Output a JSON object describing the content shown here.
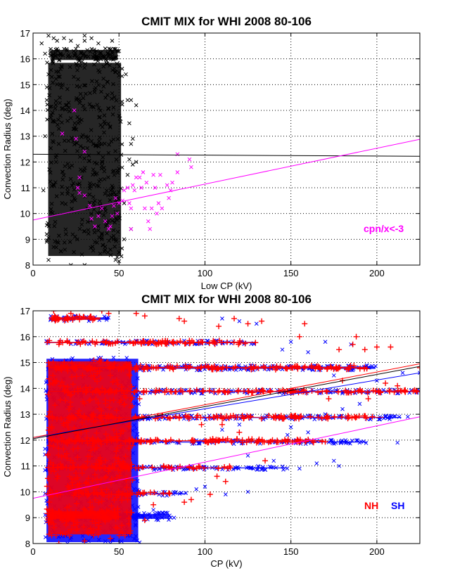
{
  "chart_data": [
    {
      "type": "scatter",
      "title": "CMIT MIX for WHI 2008 80-106",
      "xlabel": "Low CP (kV)",
      "ylabel": "Convection Radius (deg)",
      "xlim": [
        0,
        225
      ],
      "ylim": [
        8,
        17
      ],
      "xticks": [
        0,
        50,
        100,
        150,
        200
      ],
      "yticks": [
        8,
        9,
        10,
        11,
        12,
        13,
        14,
        15,
        16,
        17
      ],
      "grid": true,
      "annotation": {
        "text": "cpn/x<-3",
        "color": "#ff00ff"
      },
      "series": [
        {
          "marker": "x",
          "color": "#000000",
          "dense_regions": [
            [
              8,
              52,
              8.3,
              15.9
            ],
            [
              10,
              50,
              15.9,
              16.4
            ]
          ],
          "points": [
            [
              5,
              16.6
            ],
            [
              7,
              16.2
            ],
            [
              9,
              16.9
            ],
            [
              12,
              16.8
            ],
            [
              14,
              16.7
            ],
            [
              18,
              16.8
            ],
            [
              22,
              16.7
            ],
            [
              26,
              16.5
            ],
            [
              30,
              16.9
            ],
            [
              30,
              16.7
            ],
            [
              34,
              16.8
            ],
            [
              38,
              16.6
            ],
            [
              42,
              16.4
            ],
            [
              46,
              16.7
            ],
            [
              50,
              16.3
            ],
            [
              47,
              16.0
            ],
            [
              54,
              15.4
            ],
            [
              55,
              14.4
            ],
            [
              57,
              14.4
            ],
            [
              60,
              14.2
            ],
            [
              56,
              13.5
            ],
            [
              58,
              12.9
            ],
            [
              57,
              12.7
            ],
            [
              56,
              12.1
            ],
            [
              60,
              12.0
            ],
            [
              58,
              11.9
            ],
            [
              55,
              11.5
            ],
            [
              53,
              10.4
            ],
            [
              57,
              9.4
            ],
            [
              53,
              9.0
            ],
            [
              50,
              8.5
            ],
            [
              48,
              8.2
            ],
            [
              50,
              8.15
            ],
            [
              30,
              8.0
            ],
            [
              22,
              8.0
            ],
            [
              9,
              8.2
            ],
            [
              12,
              8.7
            ],
            [
              45,
              8.6
            ],
            [
              8,
              9.2
            ],
            [
              6,
              10.9
            ],
            [
              7,
              13.0
            ],
            [
              8,
              14.4
            ],
            [
              9,
              15.4
            ]
          ]
        },
        {
          "marker": "x",
          "color": "#ff00ff",
          "points": [
            [
              24,
              14.0
            ],
            [
              17,
              13.1
            ],
            [
              25,
              12.9
            ],
            [
              30,
              12.4
            ],
            [
              27,
              11.4
            ],
            [
              26,
              11.0
            ],
            [
              27,
              10.8
            ],
            [
              30,
              10.7
            ],
            [
              33,
              10.3
            ],
            [
              34,
              9.8
            ],
            [
              36,
              9.5
            ],
            [
              38,
              9.9
            ],
            [
              40,
              10.2
            ],
            [
              42,
              9.7
            ],
            [
              44,
              9.4
            ],
            [
              45,
              9.5
            ],
            [
              46,
              9.9
            ],
            [
              47,
              10.3
            ],
            [
              48,
              10.6
            ],
            [
              49,
              10.0
            ],
            [
              50,
              10.4
            ],
            [
              52,
              10.5
            ],
            [
              53,
              10.9
            ],
            [
              55,
              11.0
            ],
            [
              56,
              10.4
            ],
            [
              57,
              10.2
            ],
            [
              58,
              11.1
            ],
            [
              59,
              10.9
            ],
            [
              60,
              11.4
            ],
            [
              62,
              11.4
            ],
            [
              63,
              11.0
            ],
            [
              64,
              11.6
            ],
            [
              65,
              10.2
            ],
            [
              66,
              11.2
            ],
            [
              67,
              9.7
            ],
            [
              68,
              9.4
            ],
            [
              69,
              10.2
            ],
            [
              70,
              11.5
            ],
            [
              71,
              11.0
            ],
            [
              72,
              10.0
            ],
            [
              73,
              10.4
            ],
            [
              74,
              11.5
            ],
            [
              75,
              10.2
            ],
            [
              78,
              11.1
            ],
            [
              79,
              10.6
            ],
            [
              80,
              10.9
            ],
            [
              81,
              11.2
            ],
            [
              84,
              12.3
            ],
            [
              84,
              11.6
            ],
            [
              91,
              12.1
            ],
            [
              92,
              11.8
            ],
            [
              57,
              9.4
            ]
          ]
        }
      ],
      "fit_lines": [
        {
          "color": "#000000",
          "x": [
            0,
            225
          ],
          "y": [
            12.3,
            12.22
          ]
        },
        {
          "color": "#ff00ff",
          "x": [
            0,
            225
          ],
          "y": [
            9.75,
            12.88
          ]
        }
      ]
    },
    {
      "type": "scatter",
      "title": "CMIT MIX for WHI 2008 80-106",
      "xlabel": "CP (kV)",
      "ylabel": "Convection Radius (deg)",
      "xlim": [
        0,
        225
      ],
      "ylim": [
        8,
        17
      ],
      "xticks": [
        0,
        50,
        100,
        150,
        200
      ],
      "yticks": [
        8,
        9,
        10,
        11,
        12,
        13,
        14,
        15,
        16,
        17
      ],
      "grid": true,
      "series": [
        {
          "name": "SH",
          "marker": "x",
          "color": "#0000ff",
          "dense_regions": [
            [
              7,
              62,
              8.0,
              15.2
            ],
            [
              7,
              130,
              15.7,
              15.85
            ],
            [
              7,
              200,
              14.7,
              14.9
            ],
            [
              7,
              225,
              13.8,
              13.95
            ],
            [
              7,
              215,
              12.8,
              12.95
            ],
            [
              7,
              195,
              11.85,
              12.0
            ],
            [
              7,
              148,
              10.85,
              11.0
            ],
            [
              7,
              90,
              9.85,
              10.0
            ],
            [
              7,
              80,
              8.9,
              9.2
            ],
            [
              10,
              45,
              16.6,
              16.8
            ]
          ],
          "points": [
            [
              110,
              16.7
            ],
            [
              120,
              16.6
            ],
            [
              130,
              16.5
            ],
            [
              150,
              15.8
            ],
            [
              170,
              15.8
            ],
            [
              185,
              15.7
            ],
            [
              145,
              15.5
            ],
            [
              160,
              15.4
            ],
            [
              175,
              14.5
            ],
            [
              200,
              14.3
            ],
            [
              215,
              14.6
            ],
            [
              225,
              14.6
            ],
            [
              190,
              13.4
            ],
            [
              180,
              13.2
            ],
            [
              170,
              13.0
            ],
            [
              213,
              12.9
            ],
            [
              218,
              12.9
            ],
            [
              190,
              11.9
            ],
            [
              212,
              11.9
            ],
            [
              165,
              11.1
            ],
            [
              175,
              11.2
            ],
            [
              178,
              11.0
            ],
            [
              155,
              10.9
            ],
            [
              140,
              11.2
            ],
            [
              125,
              11.4
            ],
            [
              125,
              10.0
            ],
            [
              112,
              9.9
            ],
            [
              100,
              10.2
            ],
            [
              95,
              10.1
            ],
            [
              82,
              9.0
            ],
            [
              75,
              9.0
            ],
            [
              70,
              9.3
            ],
            [
              60,
              8.9
            ],
            [
              45,
              8.0
            ],
            [
              30,
              8.1
            ],
            [
              20,
              8.0
            ],
            [
              150,
              12.5
            ],
            [
              148,
              12.2
            ],
            [
              160,
              12.3
            ],
            [
              120,
              12.6
            ],
            [
              110,
              12.4
            ]
          ]
        },
        {
          "name": "NH",
          "marker": "+",
          "color": "#ff0000",
          "dense_regions": [
            [
              8,
              58,
              8.3,
              15.1
            ],
            [
              8,
              130,
              15.7,
              15.85
            ],
            [
              8,
              195,
              14.72,
              14.88
            ],
            [
              8,
              225,
              13.83,
              13.95
            ],
            [
              8,
              205,
              12.82,
              12.95
            ],
            [
              8,
              170,
              11.9,
              12.05
            ],
            [
              8,
              115,
              10.88,
              11.0
            ],
            [
              8,
              80,
              9.88,
              9.98
            ],
            [
              8,
              50,
              8.9,
              9.3
            ],
            [
              10,
              40,
              16.6,
              16.8
            ]
          ],
          "points": [
            [
              12,
              17.0
            ],
            [
              22,
              16.9
            ],
            [
              40,
              17.0
            ],
            [
              44,
              16.9
            ],
            [
              60,
              16.9
            ],
            [
              65,
              16.8
            ],
            [
              85,
              16.7
            ],
            [
              88,
              16.6
            ],
            [
              108,
              16.4
            ],
            [
              117,
              16.7
            ],
            [
              125,
              16.5
            ],
            [
              133,
              16.6
            ],
            [
              158,
              16.5
            ],
            [
              155,
              16.0
            ],
            [
              178,
              15.5
            ],
            [
              186,
              15.7
            ],
            [
              188,
              16.0
            ],
            [
              200,
              15.6
            ],
            [
              208,
              15.6
            ],
            [
              193,
              15.5
            ],
            [
              180,
              14.3
            ],
            [
              205,
              14.2
            ],
            [
              212,
              14.1
            ],
            [
              225,
              14.8
            ],
            [
              172,
              13.6
            ],
            [
              195,
              13.6
            ],
            [
              110,
              12.6
            ],
            [
              120,
              12.3
            ],
            [
              130,
              11.9
            ],
            [
              135,
              11.2
            ],
            [
              107,
              10.6
            ],
            [
              112,
              10.4
            ],
            [
              103,
              9.9
            ],
            [
              92,
              9.7
            ],
            [
              88,
              9.6
            ],
            [
              70,
              9.5
            ],
            [
              65,
              8.9
            ],
            [
              52,
              8.4
            ],
            [
              49,
              8.6
            ],
            [
              45,
              8.2
            ],
            [
              30,
              8.1
            ],
            [
              15,
              8.0
            ],
            [
              62,
              13.6
            ],
            [
              98,
              12.6
            ]
          ]
        }
      ],
      "fit_lines": [
        {
          "color": "#0000ff",
          "x": [
            0,
            225
          ],
          "y": [
            12.1,
            14.6
          ]
        },
        {
          "color": "#ff0000",
          "x": [
            0,
            225
          ],
          "y": [
            12.1,
            14.95
          ]
        },
        {
          "color": "#000000",
          "x": [
            0,
            225
          ],
          "y": [
            12.05,
            14.85
          ]
        },
        {
          "color": "#ff00ff",
          "x": [
            0,
            225
          ],
          "y": [
            9.75,
            12.9
          ]
        }
      ],
      "legend": [
        {
          "text": "NH",
          "color": "#ff0000"
        },
        {
          "text": "SH",
          "color": "#0000ff"
        }
      ],
      "legend_placement": "lower-right"
    }
  ]
}
